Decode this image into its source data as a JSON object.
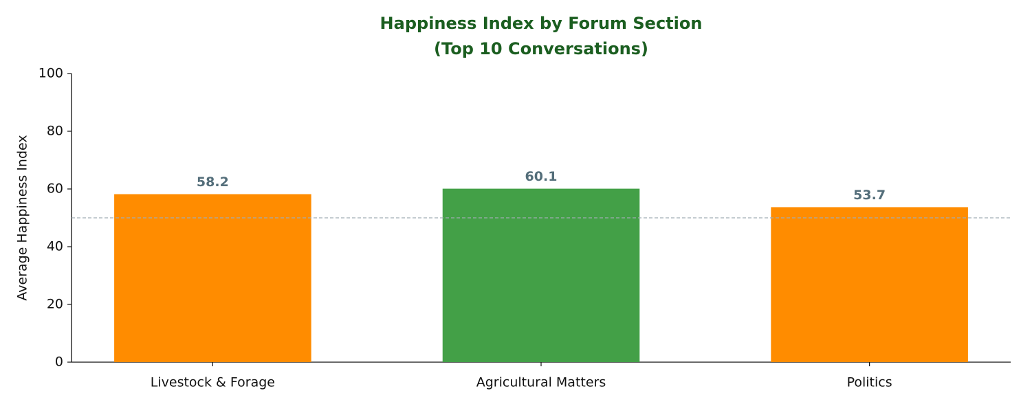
{
  "chart_data": {
    "type": "bar",
    "title": "Happiness Index by Forum Section",
    "subtitle": "(Top 10 Conversations)",
    "y_label": "Average Happiness Index",
    "categories": [
      "Livestock & Forage",
      "Agricultural Matters",
      "Politics"
    ],
    "values": [
      58.2,
      60.1,
      53.7
    ],
    "colors": [
      "#ff8c00",
      "#43a047",
      "#ff8c00"
    ],
    "ylim": [
      0,
      100
    ],
    "yticks": [
      0,
      20,
      40,
      60,
      80,
      100
    ],
    "reference_line": 50,
    "reference_color": "#a0adb3",
    "grid": false
  }
}
